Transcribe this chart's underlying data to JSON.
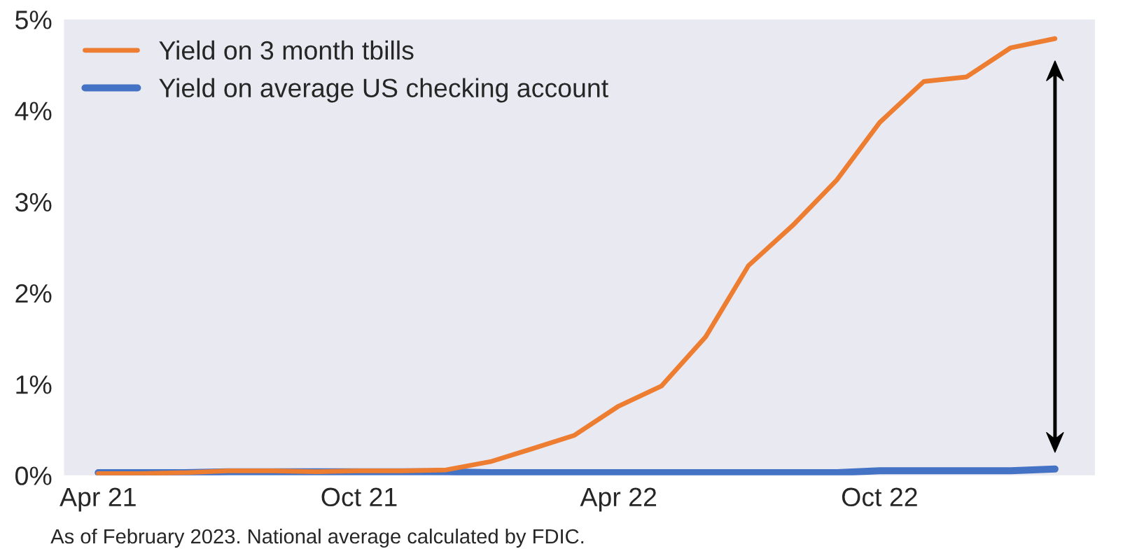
{
  "chart_data": {
    "type": "line",
    "x": [
      "2021-04",
      "2021-05",
      "2021-06",
      "2021-07",
      "2021-08",
      "2021-09",
      "2021-10",
      "2021-11",
      "2021-12",
      "2022-01",
      "2022-02",
      "2022-03",
      "2022-04",
      "2022-05",
      "2022-06",
      "2022-07",
      "2022-08",
      "2022-09",
      "2022-10",
      "2022-11",
      "2022-12",
      "2023-01",
      "2023-02"
    ],
    "series": [
      {
        "name": "Yield on 3 month tbills",
        "color": "#ed7d31",
        "values": [
          0.02,
          0.02,
          0.03,
          0.05,
          0.05,
          0.04,
          0.05,
          0.05,
          0.06,
          0.15,
          0.3,
          0.44,
          0.76,
          0.98,
          1.52,
          2.3,
          2.74,
          3.24,
          3.87,
          4.32,
          4.37,
          4.69,
          4.79
        ]
      },
      {
        "name": "Yield on average US checking account",
        "color": "#4472c4",
        "values": [
          0.03,
          0.03,
          0.03,
          0.04,
          0.04,
          0.04,
          0.04,
          0.04,
          0.04,
          0.03,
          0.03,
          0.03,
          0.03,
          0.03,
          0.03,
          0.03,
          0.03,
          0.03,
          0.05,
          0.05,
          0.05,
          0.05,
          0.07
        ]
      }
    ],
    "xlim": [
      "2021-03-08",
      "2023-03-01"
    ],
    "xticks": [
      {
        "value": "2021-04",
        "label": "Apr 21"
      },
      {
        "value": "2021-10",
        "label": "Oct 21"
      },
      {
        "value": "2022-04",
        "label": "Apr 22"
      },
      {
        "value": "2022-10",
        "label": "Oct 22"
      }
    ],
    "ylim": [
      0,
      5
    ],
    "yticks": [
      {
        "value": 0,
        "label": "0%"
      },
      {
        "value": 1,
        "label": "1%"
      },
      {
        "value": 2,
        "label": "2%"
      },
      {
        "value": 3,
        "label": "3%"
      },
      {
        "value": 4,
        "label": "4%"
      },
      {
        "value": 5,
        "label": "5%"
      }
    ],
    "grid": false,
    "legend": "top left",
    "marker": "none",
    "line_style": "solid",
    "annotations": [
      "As of February 2023. National average calculated by FDIC."
    ]
  }
}
